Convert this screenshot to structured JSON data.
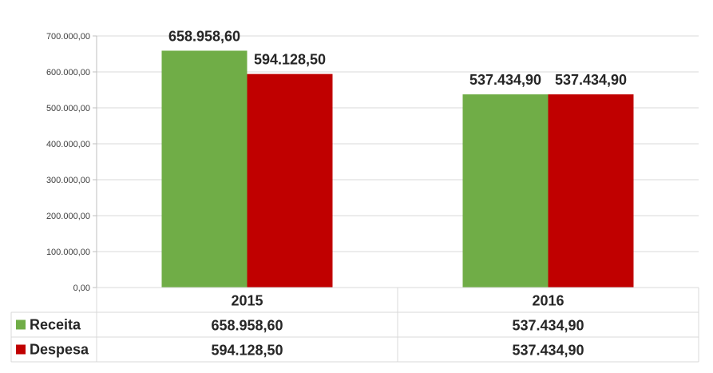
{
  "chart_data": {
    "type": "bar",
    "categories": [
      "2015",
      "2016"
    ],
    "series": [
      {
        "name": "Receita",
        "values": [
          658958.6,
          537434.9
        ],
        "labels": [
          "658.958,60",
          "537.434,90"
        ],
        "color": "#70ad47"
      },
      {
        "name": "Despesa",
        "values": [
          594128.5,
          537434.9
        ],
        "labels": [
          "594.128,50",
          "537.434,90"
        ],
        "color": "#c00000"
      }
    ],
    "ylim": [
      0,
      700000
    ],
    "yticks": [
      {
        "value": 0,
        "label": "0,00"
      },
      {
        "value": 100000,
        "label": "100.000,00"
      },
      {
        "value": 200000,
        "label": "200.000,00"
      },
      {
        "value": 300000,
        "label": "300.000,00"
      },
      {
        "value": 400000,
        "label": "400.000,00"
      },
      {
        "value": 500000,
        "label": "500.000,00"
      },
      {
        "value": 600000,
        "label": "600.000,00"
      },
      {
        "value": 700000,
        "label": "700.000,00"
      }
    ],
    "grid": true,
    "legend": "data-table"
  }
}
